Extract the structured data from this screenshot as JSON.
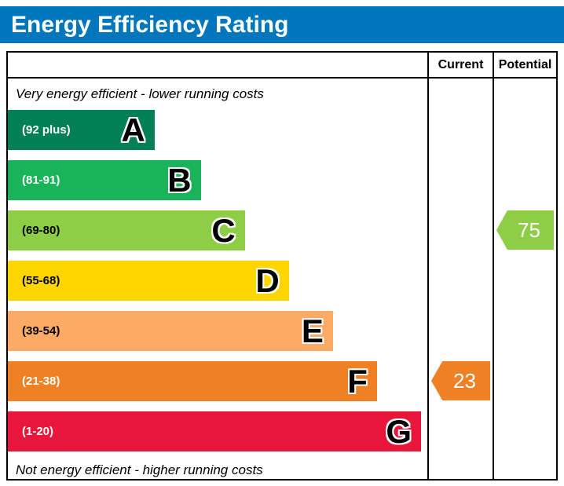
{
  "header": {
    "title": "Energy Efficiency Rating",
    "bg_color": "#0076bd"
  },
  "columns": {
    "current_label": "Current",
    "potential_label": "Potential"
  },
  "notes": {
    "top": "Very energy efficient - lower running costs",
    "bottom": "Not energy efficient - higher running costs"
  },
  "chart_data": {
    "type": "bar",
    "title": "Energy Efficiency Rating",
    "bands": [
      {
        "letter": "A",
        "range_label": "(92 plus)",
        "color": "#008054",
        "label_color": "#ffffff",
        "width_pct": 35
      },
      {
        "letter": "B",
        "range_label": "(81-91)",
        "color": "#19b459",
        "label_color": "#ffffff",
        "width_pct": 46
      },
      {
        "letter": "C",
        "range_label": "(69-80)",
        "color": "#8dce46",
        "label_color": "#000000",
        "width_pct": 56.5
      },
      {
        "letter": "D",
        "range_label": "(55-68)",
        "color": "#ffd500",
        "label_color": "#000000",
        "width_pct": 67
      },
      {
        "letter": "E",
        "range_label": "(39-54)",
        "color": "#fcaa65",
        "label_color": "#000000",
        "width_pct": 77.5
      },
      {
        "letter": "F",
        "range_label": "(21-38)",
        "color": "#ef8023",
        "label_color": "#ffffff",
        "width_pct": 88
      },
      {
        "letter": "G",
        "range_label": "(1-20)",
        "color": "#e9153b",
        "label_color": "#ffffff",
        "width_pct": 98.5
      }
    ],
    "ratings": {
      "current": {
        "value": 23,
        "band": "F",
        "band_index": 5,
        "color": "#ef8023"
      },
      "potential": {
        "value": 75,
        "band": "C",
        "band_index": 2,
        "color": "#8dce46"
      }
    }
  }
}
